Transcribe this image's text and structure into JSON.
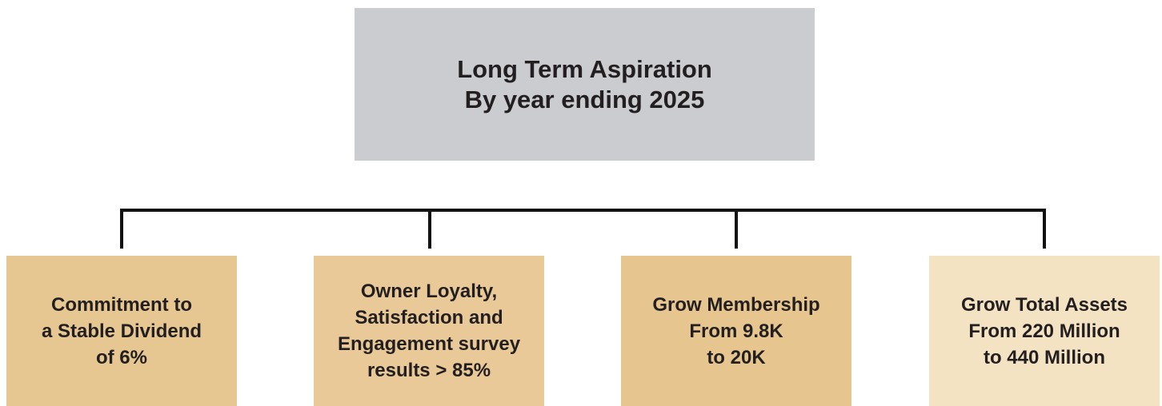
{
  "header": {
    "lines": [
      "Long Term Aspiration",
      "By year ending 2025"
    ]
  },
  "goals": [
    {
      "lines": [
        "Commitment to",
        "a Stable Dividend",
        "of 6%"
      ]
    },
    {
      "lines": [
        "Owner Loyalty,",
        "Satisfaction and",
        "Engagement survey",
        "results > 85%"
      ]
    },
    {
      "lines": [
        "Grow Membership",
        "From 9.8K",
        "to 20K"
      ]
    },
    {
      "lines": [
        "Grow Total Assets",
        "From 220 Million",
        "to 440 Million"
      ]
    }
  ]
}
